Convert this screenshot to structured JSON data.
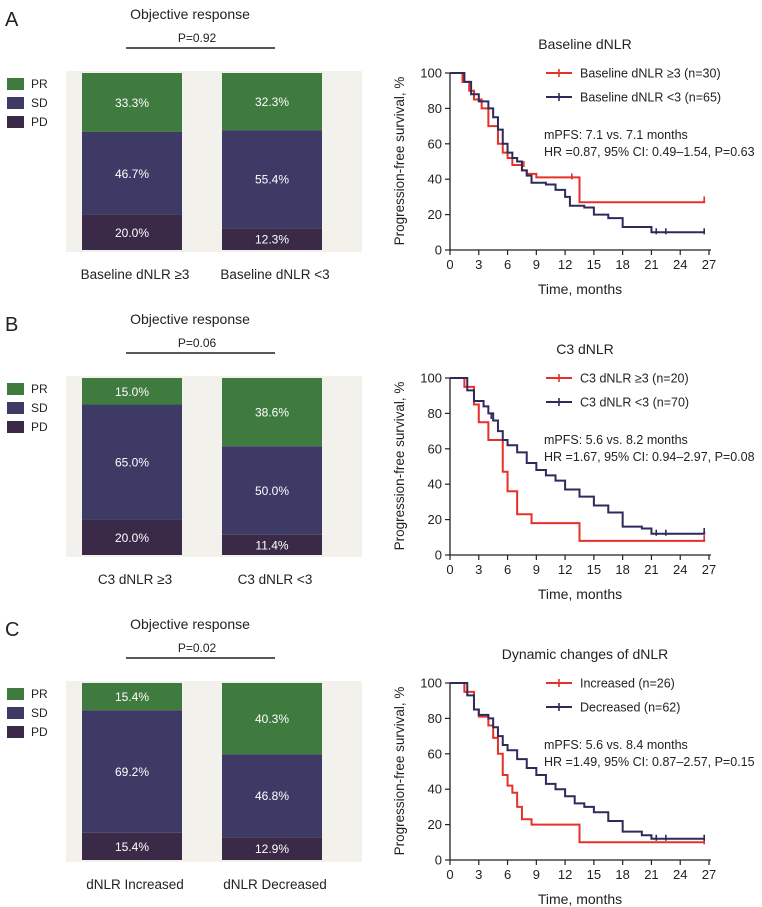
{
  "colors": {
    "pr": "#3f7a3f",
    "sd": "#3d3a66",
    "pd": "#3a2a48",
    "red": "#e8302a",
    "navy": "#2e2a5a",
    "panel_bg": "#f3f1ec",
    "axis": "#222222",
    "text": "#222222"
  },
  "legend": {
    "items": [
      "PR",
      "SD",
      "PD"
    ]
  },
  "panels": [
    {
      "letter": "A",
      "bar": {
        "title": "Objective response",
        "pvalue": "P=0.92",
        "groups": [
          {
            "label": "Baseline dNLR ≥3",
            "pr": 33.3,
            "sd": 46.7,
            "pd": 20.0,
            "pr_text": "33.3%",
            "sd_text": "46.7%",
            "pd_text": "20.0%"
          },
          {
            "label": "Baseline dNLR <3",
            "pr": 32.3,
            "sd": 55.4,
            "pd": 12.3,
            "pr_text": "32.3%",
            "sd_text": "55.4%",
            "pd_text": "12.3%"
          }
        ]
      },
      "km": {
        "title": "Baseline dNLR",
        "series": [
          {
            "name": "Baseline dNLR ≥3 (n=30)",
            "color": "red",
            "points": [
              [
                0,
                100
              ],
              [
                1,
                100
              ],
              [
                1.3,
                95
              ],
              [
                2,
                90
              ],
              [
                2.5,
                85
              ],
              [
                3.3,
                80
              ],
              [
                4,
                70
              ],
              [
                5,
                60
              ],
              [
                5.5,
                55
              ],
              [
                6,
                52
              ],
              [
                6.5,
                48
              ],
              [
                7,
                48
              ],
              [
                7.5,
                45
              ],
              [
                8,
                43
              ],
              [
                9,
                41
              ],
              [
                10.5,
                41
              ],
              [
                12,
                41
              ],
              [
                13.5,
                27
              ],
              [
                21,
                27
              ],
              [
                26.5,
                28
              ]
            ],
            "censors": [
              [
                7.7,
                48
              ],
              [
                12.7,
                41
              ],
              [
                26.5,
                28
              ]
            ]
          },
          {
            "name": "Baseline dNLR <3 (n=65)",
            "color": "navy",
            "points": [
              [
                0,
                100
              ],
              [
                1,
                100
              ],
              [
                1.5,
                95
              ],
              [
                2.2,
                88
              ],
              [
                3,
                84
              ],
              [
                4,
                80
              ],
              [
                4.5,
                75
              ],
              [
                5,
                68
              ],
              [
                5.5,
                60
              ],
              [
                6,
                55
              ],
              [
                6.5,
                52
              ],
              [
                7,
                50
              ],
              [
                7.5,
                45
              ],
              [
                8,
                42
              ],
              [
                8.5,
                38
              ],
              [
                10,
                37
              ],
              [
                11,
                34
              ],
              [
                12,
                30
              ],
              [
                12.5,
                25
              ],
              [
                14,
                24
              ],
              [
                15,
                20
              ],
              [
                16.5,
                18
              ],
              [
                18,
                13
              ],
              [
                20,
                13
              ],
              [
                21,
                10
              ],
              [
                26.5,
                10
              ]
            ],
            "censors": [
              [
                21.5,
                10
              ],
              [
                22.5,
                10
              ],
              [
                26.5,
                10
              ]
            ]
          }
        ],
        "annotation": [
          "mPFS: 7.1 vs. 7.1 months",
          "HR =0.87, 95% CI: 0.49–1.54, P=0.63"
        ],
        "ylabel": "Progression-free survival, %",
        "xlabel": "Time, months",
        "xticks": [
          0,
          3,
          6,
          9,
          12,
          15,
          18,
          21,
          24,
          27
        ],
        "yticks": [
          0,
          20,
          40,
          60,
          80,
          100
        ]
      }
    },
    {
      "letter": "B",
      "bar": {
        "title": "Objective response",
        "pvalue": "P=0.06",
        "groups": [
          {
            "label": "C3 dNLR ≥3",
            "pr": 15.0,
            "sd": 65.0,
            "pd": 20.0,
            "pr_text": "15.0%",
            "sd_text": "65.0%",
            "pd_text": "20.0%"
          },
          {
            "label": "C3 dNLR <3",
            "pr": 38.6,
            "sd": 50.0,
            "pd": 11.4,
            "pr_text": "38.6%",
            "sd_text": "50.0%",
            "pd_text": "11.4%"
          }
        ]
      },
      "km": {
        "title": "C3 dNLR",
        "series": [
          {
            "name": "C3 dNLR ≥3 (n=20)",
            "color": "red",
            "points": [
              [
                0,
                100
              ],
              [
                1,
                100
              ],
              [
                1.5,
                95
              ],
              [
                2.5,
                85
              ],
              [
                3,
                75
              ],
              [
                4,
                65
              ],
              [
                5,
                65
              ],
              [
                5.5,
                47
              ],
              [
                6,
                36
              ],
              [
                7,
                23
              ],
              [
                8.5,
                18
              ],
              [
                12,
                18
              ],
              [
                13.5,
                8
              ],
              [
                22,
                8
              ],
              [
                26.5,
                9
              ]
            ],
            "censors": [
              [
                26.5,
                9
              ]
            ]
          },
          {
            "name": "C3 dNLR <3 (n=70)",
            "color": "navy",
            "points": [
              [
                0,
                100
              ],
              [
                1,
                100
              ],
              [
                1.8,
                93
              ],
              [
                2.5,
                87
              ],
              [
                3.5,
                84
              ],
              [
                4,
                80
              ],
              [
                4.5,
                76
              ],
              [
                5,
                70
              ],
              [
                5.5,
                65
              ],
              [
                6,
                62
              ],
              [
                7,
                58
              ],
              [
                8,
                52
              ],
              [
                9,
                48
              ],
              [
                10,
                45
              ],
              [
                11,
                42
              ],
              [
                12,
                37
              ],
              [
                13.5,
                33
              ],
              [
                15,
                28
              ],
              [
                16.5,
                24
              ],
              [
                18,
                16
              ],
              [
                20,
                15
              ],
              [
                21,
                12
              ],
              [
                24,
                12
              ],
              [
                26.5,
                13
              ]
            ],
            "censors": [
              [
                4.3,
                78
              ],
              [
                21.5,
                12
              ],
              [
                22.5,
                12
              ],
              [
                26.5,
                13
              ]
            ]
          }
        ],
        "annotation": [
          "mPFS: 5.6 vs. 8.2 months",
          "HR =1.67, 95% CI: 0.94–2.97, P=0.08"
        ],
        "ylabel": "Progression-free survival, %",
        "xlabel": "Time, months",
        "xticks": [
          0,
          3,
          6,
          9,
          12,
          15,
          18,
          21,
          24,
          27
        ],
        "yticks": [
          0,
          20,
          40,
          60,
          80,
          100
        ]
      }
    },
    {
      "letter": "C",
      "bar": {
        "title": "Objective response",
        "pvalue": "P=0.02",
        "groups": [
          {
            "label": "dNLR Increased",
            "pr": 15.4,
            "sd": 69.2,
            "pd": 15.4,
            "pr_text": "15.4%",
            "sd_text": "69.2%",
            "pd_text": "15.4%"
          },
          {
            "label": "dNLR Decreased",
            "pr": 40.3,
            "sd": 46.8,
            "pd": 12.9,
            "pr_text": "40.3%",
            "sd_text": "46.8%",
            "pd_text": "12.9%"
          }
        ]
      },
      "km": {
        "title": "Dynamic changes of dNLR",
        "series": [
          {
            "name": "Increased (n=26)",
            "color": "red",
            "points": [
              [
                0,
                100
              ],
              [
                1,
                100
              ],
              [
                1.5,
                95
              ],
              [
                2.5,
                85
              ],
              [
                3,
                81
              ],
              [
                4,
                76
              ],
              [
                4.5,
                69
              ],
              [
                5,
                60
              ],
              [
                5.5,
                48
              ],
              [
                6,
                42
              ],
              [
                6.5,
                38
              ],
              [
                7,
                30
              ],
              [
                7.5,
                23
              ],
              [
                8.5,
                20
              ],
              [
                12,
                20
              ],
              [
                13.5,
                10
              ],
              [
                22,
                10
              ],
              [
                26.5,
                10
              ]
            ],
            "censors": [
              [
                26.5,
                10
              ]
            ]
          },
          {
            "name": "Decreased (n=62)",
            "color": "navy",
            "points": [
              [
                0,
                100
              ],
              [
                1,
                100
              ],
              [
                1.8,
                93
              ],
              [
                2.5,
                85
              ],
              [
                3,
                82
              ],
              [
                4,
                80
              ],
              [
                4.5,
                75
              ],
              [
                5,
                70
              ],
              [
                5.5,
                65
              ],
              [
                6,
                62
              ],
              [
                7,
                57
              ],
              [
                8,
                52
              ],
              [
                9,
                48
              ],
              [
                10,
                43
              ],
              [
                11,
                40
              ],
              [
                12,
                36
              ],
              [
                13,
                32
              ],
              [
                14,
                30
              ],
              [
                15,
                27
              ],
              [
                16.5,
                22
              ],
              [
                18,
                16
              ],
              [
                20,
                14
              ],
              [
                21,
                12
              ],
              [
                24,
                12
              ],
              [
                26.5,
                12
              ]
            ],
            "censors": [
              [
                21.5,
                12
              ],
              [
                22.5,
                12
              ],
              [
                26.5,
                12
              ]
            ]
          }
        ],
        "annotation": [
          "mPFS: 5.6 vs. 8.4 months",
          "HR =1.49, 95% CI: 0.87–2.57, P=0.15"
        ],
        "ylabel": "Progression-free survival, %",
        "xlabel": "Time, months",
        "xticks": [
          0,
          3,
          6,
          9,
          12,
          15,
          18,
          21,
          24,
          27
        ],
        "yticks": [
          0,
          20,
          40,
          60,
          80,
          100
        ]
      }
    }
  ],
  "chart_data": [
    {
      "type": "bar",
      "title": "Objective response",
      "stacked": true,
      "annotation": "P=0.92",
      "categories": [
        "Baseline dNLR ≥3",
        "Baseline dNLR <3"
      ],
      "series": [
        {
          "name": "PR",
          "values": [
            33.3,
            32.3
          ]
        },
        {
          "name": "SD",
          "values": [
            46.7,
            55.4
          ]
        },
        {
          "name": "PD",
          "values": [
            20.0,
            12.3
          ]
        }
      ]
    },
    {
      "type": "line",
      "title": "Baseline dNLR",
      "xlabel": "Time, months",
      "ylabel": "Progression-free survival, %",
      "xlim": [
        0,
        27
      ],
      "ylim": [
        0,
        100
      ],
      "series": [
        {
          "name": "Baseline dNLR ≥3 (n=30)"
        },
        {
          "name": "Baseline dNLR <3 (n=65)"
        }
      ]
    },
    {
      "type": "bar",
      "title": "Objective response",
      "stacked": true,
      "annotation": "P=0.06",
      "categories": [
        "C3 dNLR ≥3",
        "C3 dNLR <3"
      ],
      "series": [
        {
          "name": "PR",
          "values": [
            15.0,
            38.6
          ]
        },
        {
          "name": "SD",
          "values": [
            65.0,
            50.0
          ]
        },
        {
          "name": "PD",
          "values": [
            20.0,
            11.4
          ]
        }
      ]
    },
    {
      "type": "line",
      "title": "C3 dNLR",
      "xlabel": "Time, months",
      "ylabel": "Progression-free survival, %",
      "xlim": [
        0,
        27
      ],
      "ylim": [
        0,
        100
      ],
      "series": [
        {
          "name": "C3 dNLR ≥3 (n=20)"
        },
        {
          "name": "C3 dNLR <3 (n=70)"
        }
      ]
    },
    {
      "type": "bar",
      "title": "Objective response",
      "stacked": true,
      "annotation": "P=0.02",
      "categories": [
        "dNLR Increased",
        "dNLR Decreased"
      ],
      "series": [
        {
          "name": "PR",
          "values": [
            15.4,
            40.3
          ]
        },
        {
          "name": "SD",
          "values": [
            69.2,
            46.8
          ]
        },
        {
          "name": "PD",
          "values": [
            15.4,
            12.9
          ]
        }
      ]
    },
    {
      "type": "line",
      "title": "Dynamic changes of dNLR",
      "xlabel": "Time, months",
      "ylabel": "Progression-free survival, %",
      "xlim": [
        0,
        27
      ],
      "ylim": [
        0,
        100
      ],
      "series": [
        {
          "name": "Increased (n=26)"
        },
        {
          "name": "Decreased (n=62)"
        }
      ]
    }
  ]
}
